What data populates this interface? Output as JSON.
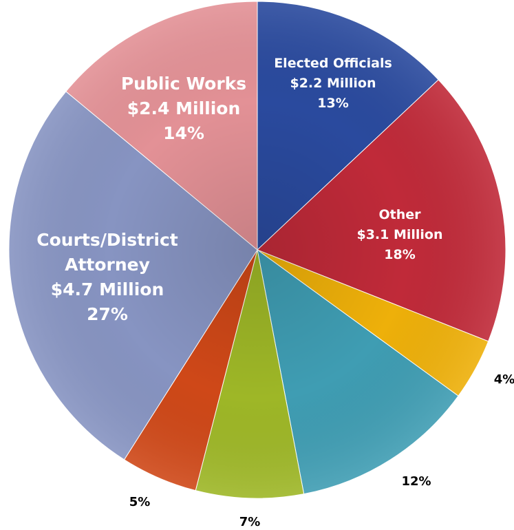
{
  "chart_data": {
    "type": "pie",
    "title": "",
    "slices": [
      {
        "label_lines": [
          "Elected Officials",
          "$2.2 Million",
          "13%"
        ],
        "value": 13,
        "color": "#2a4a9e",
        "label_color": "#ffffff"
      },
      {
        "label_lines": [
          "Other",
          "$3.1 Million",
          "18%"
        ],
        "value": 18,
        "color": "#c02a39",
        "label_color": "#ffffff"
      },
      {
        "label_lines": [
          "4%"
        ],
        "value": 4,
        "color": "#eeb00a",
        "label_color": "#000000"
      },
      {
        "label_lines": [
          "12%"
        ],
        "value": 12,
        "color": "#3f9db3",
        "label_color": "#000000"
      },
      {
        "label_lines": [
          "7%"
        ],
        "value": 7,
        "color": "#9eb727",
        "label_color": "#000000"
      },
      {
        "label_lines": [
          "5%"
        ],
        "value": 5,
        "color": "#cf4818",
        "label_color": "#000000"
      },
      {
        "label_lines": [
          "Courts/District",
          "Attorney",
          "$4.7 Million",
          "27%"
        ],
        "value": 27,
        "color": "#8794c2",
        "label_color": "#ffffff"
      },
      {
        "label_lines": [
          "Public Works",
          "$2.4 Million",
          "14%"
        ],
        "value": 14,
        "color": "#e39196",
        "label_color": "#ffffff"
      }
    ]
  }
}
